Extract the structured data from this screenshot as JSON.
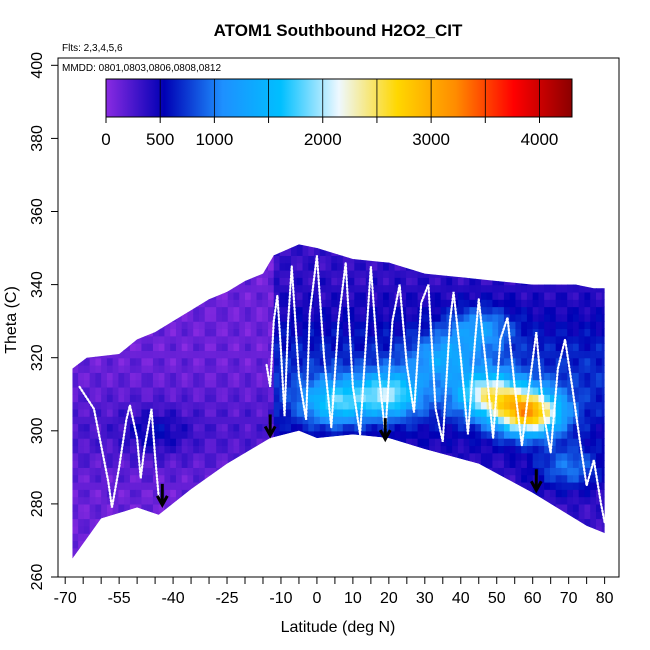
{
  "chart_data": {
    "type": "heatmap",
    "title": "ATOM1 Southbound H2O2_CIT",
    "flights_label": "Flts: 2,3,4,5,6",
    "dates_label": "MMDD: 0801,0803,0806,0808,0812",
    "xlabel": "Latitude (deg N)",
    "ylabel": "Theta (C)",
    "xlim": [
      -72,
      84
    ],
    "ylim": [
      260,
      402
    ],
    "x_major_ticks": [
      -70,
      -55,
      -40,
      -25,
      -10,
      0,
      10,
      20,
      30,
      40,
      50,
      60,
      70,
      80
    ],
    "x_minor_ticks": [
      -65,
      -60,
      -50,
      -45,
      -35,
      -30,
      -20,
      -15,
      -5,
      5,
      15,
      25,
      35,
      45,
      55,
      65,
      75
    ],
    "y_ticks": [
      260,
      280,
      300,
      320,
      340,
      360,
      380,
      400
    ],
    "colorbar": {
      "min": 0,
      "max": 4300,
      "ticks": [
        0,
        500,
        1000,
        2000,
        3000,
        4000
      ],
      "colors": [
        "#8a2be2",
        "#0000b4",
        "#1e90ff",
        "#00bfff",
        "#eef8ff",
        "#ffd700",
        "#ff8c00",
        "#ff0000",
        "#8b0000"
      ]
    },
    "data_bounds": {
      "top": [
        [
          -68,
          317
        ],
        [
          -64,
          320
        ],
        [
          -55,
          321
        ],
        [
          -50,
          325
        ],
        [
          -45,
          327
        ],
        [
          -40,
          330
        ],
        [
          -35,
          333
        ],
        [
          -30,
          336
        ],
        [
          -25,
          338
        ],
        [
          -20,
          341
        ],
        [
          -15,
          343
        ],
        [
          -12,
          348
        ],
        [
          -5,
          351
        ],
        [
          0,
          350
        ],
        [
          10,
          347
        ],
        [
          20,
          346
        ],
        [
          30,
          343
        ],
        [
          40,
          342
        ],
        [
          50,
          341
        ],
        [
          60,
          340
        ],
        [
          72,
          340
        ],
        [
          77,
          339
        ]
      ],
      "bottom": [
        [
          -68,
          265
        ],
        [
          -60,
          276
        ],
        [
          -50,
          279
        ],
        [
          -44,
          277
        ],
        [
          -35,
          284
        ],
        [
          -25,
          291
        ],
        [
          -13,
          298
        ],
        [
          -5,
          300
        ],
        [
          0,
          298
        ],
        [
          10,
          299
        ],
        [
          20,
          298
        ],
        [
          30,
          295
        ],
        [
          45,
          291
        ],
        [
          60,
          283
        ],
        [
          75,
          274
        ],
        [
          80,
          272
        ]
      ]
    },
    "value_regions": [
      {
        "lat": 20,
        "theta": 310,
        "value": 1300
      },
      {
        "lat": 48,
        "theta": 310,
        "value": 1600
      },
      {
        "lat": 59,
        "theta": 305,
        "value": 2400
      },
      {
        "lat": 5,
        "theta": 308,
        "value": 1100
      },
      {
        "lat": 45,
        "theta": 328,
        "value": 700
      },
      {
        "lat": 35,
        "theta": 320,
        "value": 650
      },
      {
        "lat": -45,
        "theta": 300,
        "value": 300
      },
      {
        "lat": 70,
        "theta": 290,
        "value": 600
      }
    ],
    "flight_tracks": [
      [
        [
          -66,
          312
        ],
        [
          -62,
          306
        ],
        [
          -60,
          296
        ],
        [
          -58,
          286
        ],
        [
          -57,
          279
        ],
        [
          -55,
          290
        ],
        [
          -53,
          303
        ],
        [
          -52,
          307
        ],
        [
          -50,
          298
        ],
        [
          -49,
          287
        ],
        [
          -48,
          295
        ],
        [
          -46,
          306
        ],
        [
          -45,
          293
        ],
        [
          -44,
          282
        ]
      ],
      [
        [
          -14,
          318
        ],
        [
          -13,
          312
        ],
        [
          -12,
          330
        ],
        [
          -11,
          337
        ],
        [
          -10,
          322
        ],
        [
          -9,
          304
        ],
        [
          -8,
          330
        ],
        [
          -7,
          345
        ],
        [
          -5,
          315
        ],
        [
          -3,
          303
        ],
        [
          -2,
          332
        ],
        [
          0,
          348
        ],
        [
          2,
          320
        ],
        [
          4,
          301
        ],
        [
          6,
          330
        ],
        [
          8,
          346
        ],
        [
          10,
          312
        ],
        [
          12,
          299
        ],
        [
          14,
          330
        ],
        [
          15,
          345
        ],
        [
          17,
          318
        ],
        [
          19,
          299
        ],
        [
          21,
          330
        ],
        [
          23,
          340
        ],
        [
          25,
          318
        ],
        [
          27,
          305
        ],
        [
          29,
          335
        ],
        [
          31,
          340
        ],
        [
          33,
          306
        ],
        [
          35,
          297
        ],
        [
          37,
          330
        ],
        [
          38,
          338
        ],
        [
          40,
          320
        ],
        [
          42,
          299
        ],
        [
          44,
          325
        ],
        [
          45,
          336
        ],
        [
          47,
          318
        ],
        [
          49,
          298
        ],
        [
          51,
          325
        ],
        [
          53,
          331
        ],
        [
          55,
          312
        ],
        [
          57,
          296
        ],
        [
          59,
          312
        ],
        [
          61,
          327
        ],
        [
          63,
          305
        ],
        [
          65,
          294
        ],
        [
          67,
          317
        ],
        [
          69,
          325
        ],
        [
          71,
          312
        ],
        [
          73,
          298
        ],
        [
          75,
          285
        ],
        [
          77,
          292
        ],
        [
          79,
          280
        ],
        [
          80,
          275
        ]
      ]
    ],
    "arrows": [
      {
        "lat": -43,
        "theta": 280
      },
      {
        "lat": -13,
        "theta": 299
      },
      {
        "lat": 19,
        "theta": 298
      },
      {
        "lat": 61,
        "theta": 284
      }
    ]
  }
}
